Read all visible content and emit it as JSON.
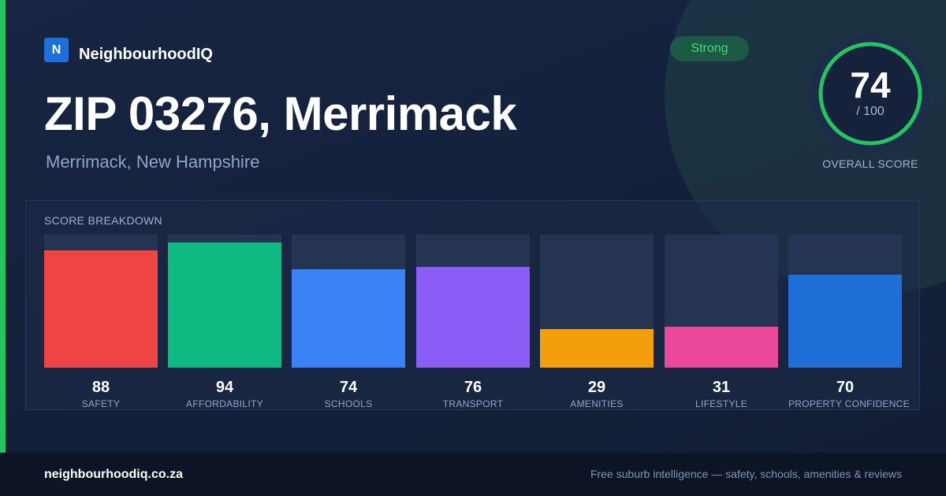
{
  "brand": {
    "logo_letter": "N",
    "name": "NeighbourhoodIQ"
  },
  "header": {
    "title": "ZIP 03276, Merrimack",
    "subtitle": "Merrimack, New Hampshire"
  },
  "rating_badge": "Strong",
  "overall_score": {
    "value": "74",
    "max_label": "/ 100",
    "label": "OVERALL SCORE",
    "fraction": 0.74
  },
  "breakdown": {
    "title": "SCORE BREAKDOWN",
    "scores": [
      {
        "label": "SAFETY",
        "value": 88,
        "color": "#ef4444"
      },
      {
        "label": "AFFORDABILITY",
        "value": 94,
        "color": "#10b981"
      },
      {
        "label": "SCHOOLS",
        "value": 74,
        "color": "#3b82f6"
      },
      {
        "label": "TRANSPORT",
        "value": 76,
        "color": "#8b5cf6"
      },
      {
        "label": "AMENITIES",
        "value": 29,
        "color": "#f59e0b"
      },
      {
        "label": "LIFESTYLE",
        "value": 31,
        "color": "#ec4899"
      },
      {
        "label": "PROPERTY CONFIDENCE",
        "value": 70,
        "color": "#1f6fd8"
      }
    ]
  },
  "footer": {
    "url": "neighbourhoodiq.co.za",
    "tagline": "Free suburb intelligence — safety, schools, amenities & reviews"
  },
  "colors": {
    "accent": "#22c55e",
    "brand": "#1e6fd9",
    "background": "#15213a"
  }
}
